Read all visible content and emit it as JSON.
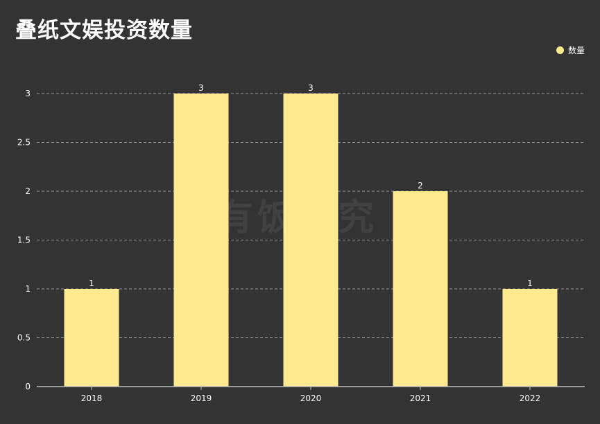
{
  "colors": {
    "bar": "#FFEA8F",
    "background": "#333333",
    "grid": "#9a9a9a"
  },
  "watermark": "有饭研究",
  "chart_data": {
    "type": "bar",
    "title": "叠纸文娱投资数量",
    "categories": [
      "2018",
      "2019",
      "2020",
      "2021",
      "2022"
    ],
    "series": [
      {
        "name": "数量",
        "values": [
          1,
          3,
          3,
          2,
          1
        ]
      }
    ],
    "yticks": [
      "0",
      "0.5",
      "1",
      "1.5",
      "2",
      "2.5",
      "3"
    ],
    "ylim": [
      0,
      3
    ],
    "grid": true,
    "legend": "top-right"
  }
}
